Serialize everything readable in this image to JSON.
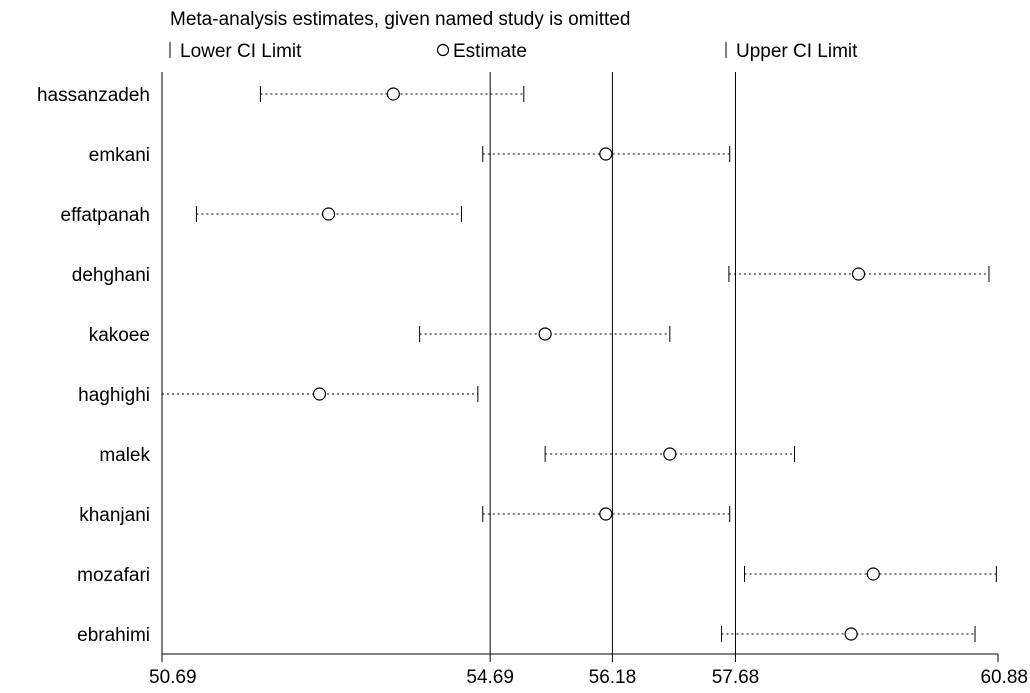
{
  "chart_data": {
    "type": "forest",
    "title": "Meta-analysis estimates, given named study is omitted",
    "legend": {
      "lower": "Lower CI Limit",
      "estimate": "Estimate",
      "upper": "Upper CI Limit",
      "placement": "top"
    },
    "xlim": [
      50.69,
      60.88
    ],
    "x_ticks": [
      50.69,
      54.69,
      56.18,
      57.68,
      60.88
    ],
    "x_tick_labels": [
      "50.69",
      "54.69",
      "56.18",
      "57.68",
      "60.88"
    ],
    "reference_lines": [
      54.69,
      56.18,
      57.68
    ],
    "grid": false,
    "studies": [
      {
        "name": "hassanzadeh",
        "lower": 51.89,
        "estimate": 53.51,
        "upper": 55.1
      },
      {
        "name": "emkani",
        "lower": 54.6,
        "estimate": 56.1,
        "upper": 57.61
      },
      {
        "name": "effatpanah",
        "lower": 51.11,
        "estimate": 52.72,
        "upper": 54.34
      },
      {
        "name": "dehghani",
        "lower": 57.6,
        "estimate": 59.18,
        "upper": 60.77
      },
      {
        "name": "kakoee",
        "lower": 53.83,
        "estimate": 55.36,
        "upper": 56.88
      },
      {
        "name": "haghighi",
        "lower": 50.69,
        "estimate": 52.61,
        "upper": 54.54
      },
      {
        "name": "malek",
        "lower": 55.36,
        "estimate": 56.88,
        "upper": 58.4
      },
      {
        "name": "khanjani",
        "lower": 54.6,
        "estimate": 56.1,
        "upper": 57.61
      },
      {
        "name": "mozafari",
        "lower": 57.79,
        "estimate": 59.36,
        "upper": 60.86
      },
      {
        "name": "ebrahimi",
        "lower": 57.51,
        "estimate": 59.09,
        "upper": 60.6
      }
    ]
  }
}
